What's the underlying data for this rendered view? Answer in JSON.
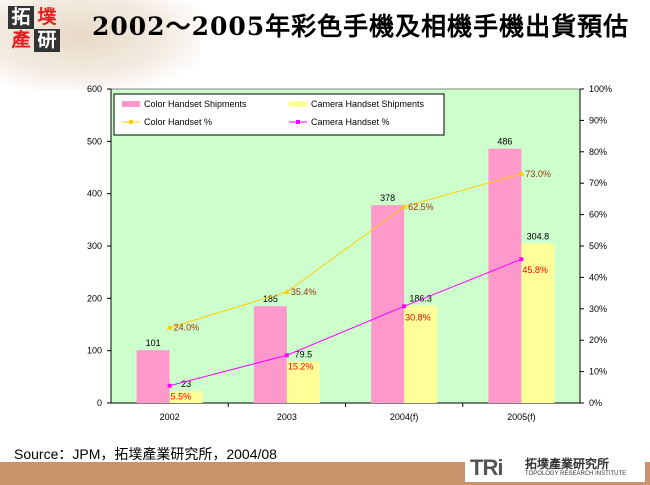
{
  "header": {
    "title": "2002～2005年彩色手機及相機手機出貨預估",
    "logo_chars": [
      "拓",
      "墣",
      "產",
      "研"
    ]
  },
  "footer": {
    "source": "Source：JPM，拓墣產業研究所，2004/08",
    "brand_abbr": "TRi",
    "brand_name": "拓墣產業研究所",
    "brand_en": "TOPOLOGY RESEARCH INSTITUTE",
    "band_color": "#c9926b"
  },
  "chart_data": {
    "type": "bar+line",
    "categories": [
      "2002",
      "2003",
      "2004(f)",
      "2005(f)"
    ],
    "left_axis": {
      "ylim": [
        0,
        600
      ],
      "ticks": [
        "0",
        "100",
        "200",
        "300",
        "400",
        "500",
        "600"
      ]
    },
    "right_axis": {
      "ylim": [
        0,
        100
      ],
      "ticks": [
        "0%",
        "10%",
        "20%",
        "30%",
        "40%",
        "50%",
        "60%",
        "70%",
        "80%",
        "90%",
        "100%"
      ]
    },
    "plot_background": "#ccffcc",
    "legend_position": "top-left",
    "series": [
      {
        "name": "Color Handset Shipments",
        "type": "bar",
        "axis": "left",
        "color": "#ff99cc",
        "values": [
          101,
          185,
          378,
          486
        ],
        "labels": [
          "101",
          "185",
          "378",
          "486"
        ]
      },
      {
        "name": "Camera Handset Shipments",
        "type": "bar",
        "axis": "left",
        "color": "#ffff99",
        "values": [
          23,
          79.5,
          186.3,
          304.8
        ],
        "labels": [
          "23",
          "79.5",
          "186.3",
          "304.8"
        ]
      },
      {
        "name": "Color Handset %",
        "type": "line",
        "axis": "right",
        "color": "#ffcc00",
        "values": [
          24.0,
          35.4,
          62.5,
          73.0
        ],
        "labels": [
          "24.0%",
          "35.4%",
          "62.5%",
          "73.0%"
        ]
      },
      {
        "name": "Camera Handset %",
        "type": "line",
        "axis": "right",
        "color": "#ff00ff",
        "values": [
          5.5,
          15.2,
          30.8,
          45.8
        ],
        "labels": [
          "5.5%",
          "15.2%",
          "30.8%",
          "45.8%"
        ]
      }
    ]
  }
}
